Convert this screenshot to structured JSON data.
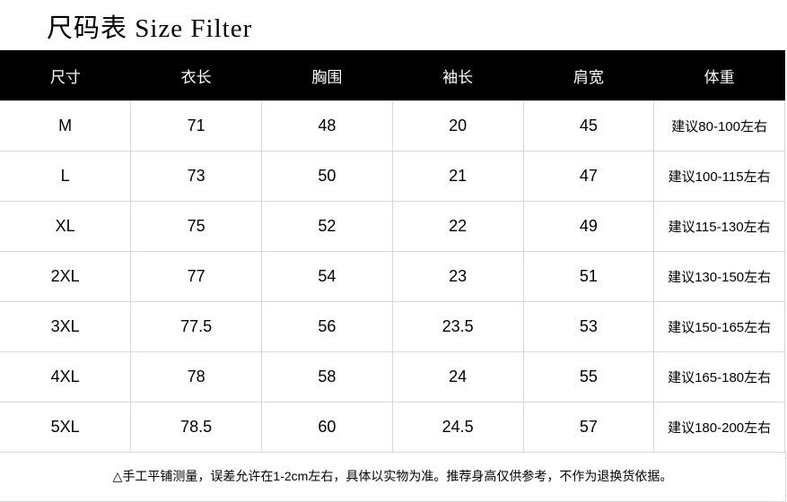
{
  "title": "尺码表 Size Filter",
  "headers": [
    "尺寸",
    "衣长",
    "胸围",
    "袖长",
    "肩宽",
    "体重"
  ],
  "rows": [
    [
      "M",
      "71",
      "48",
      "20",
      "45",
      "建议80-100左右"
    ],
    [
      "L",
      "73",
      "50",
      "21",
      "47",
      "建议100-115左右"
    ],
    [
      "XL",
      "75",
      "52",
      "22",
      "49",
      "建议115-130左右"
    ],
    [
      "2XL",
      "77",
      "54",
      "23",
      "51",
      "建议130-150左右"
    ],
    [
      "3XL",
      "77.5",
      "56",
      "23.5",
      "53",
      "建议150-165左右"
    ],
    [
      "4XL",
      "78",
      "58",
      "24",
      "55",
      "建议165-180左右"
    ],
    [
      "5XL",
      "78.5",
      "60",
      "24.5",
      "57",
      "建议180-200左右"
    ]
  ],
  "note": "△手工平铺测量，误差允许在1-2cm左右，具体以实物为准。推荐身高仅供参考，不作为退换货依据。"
}
